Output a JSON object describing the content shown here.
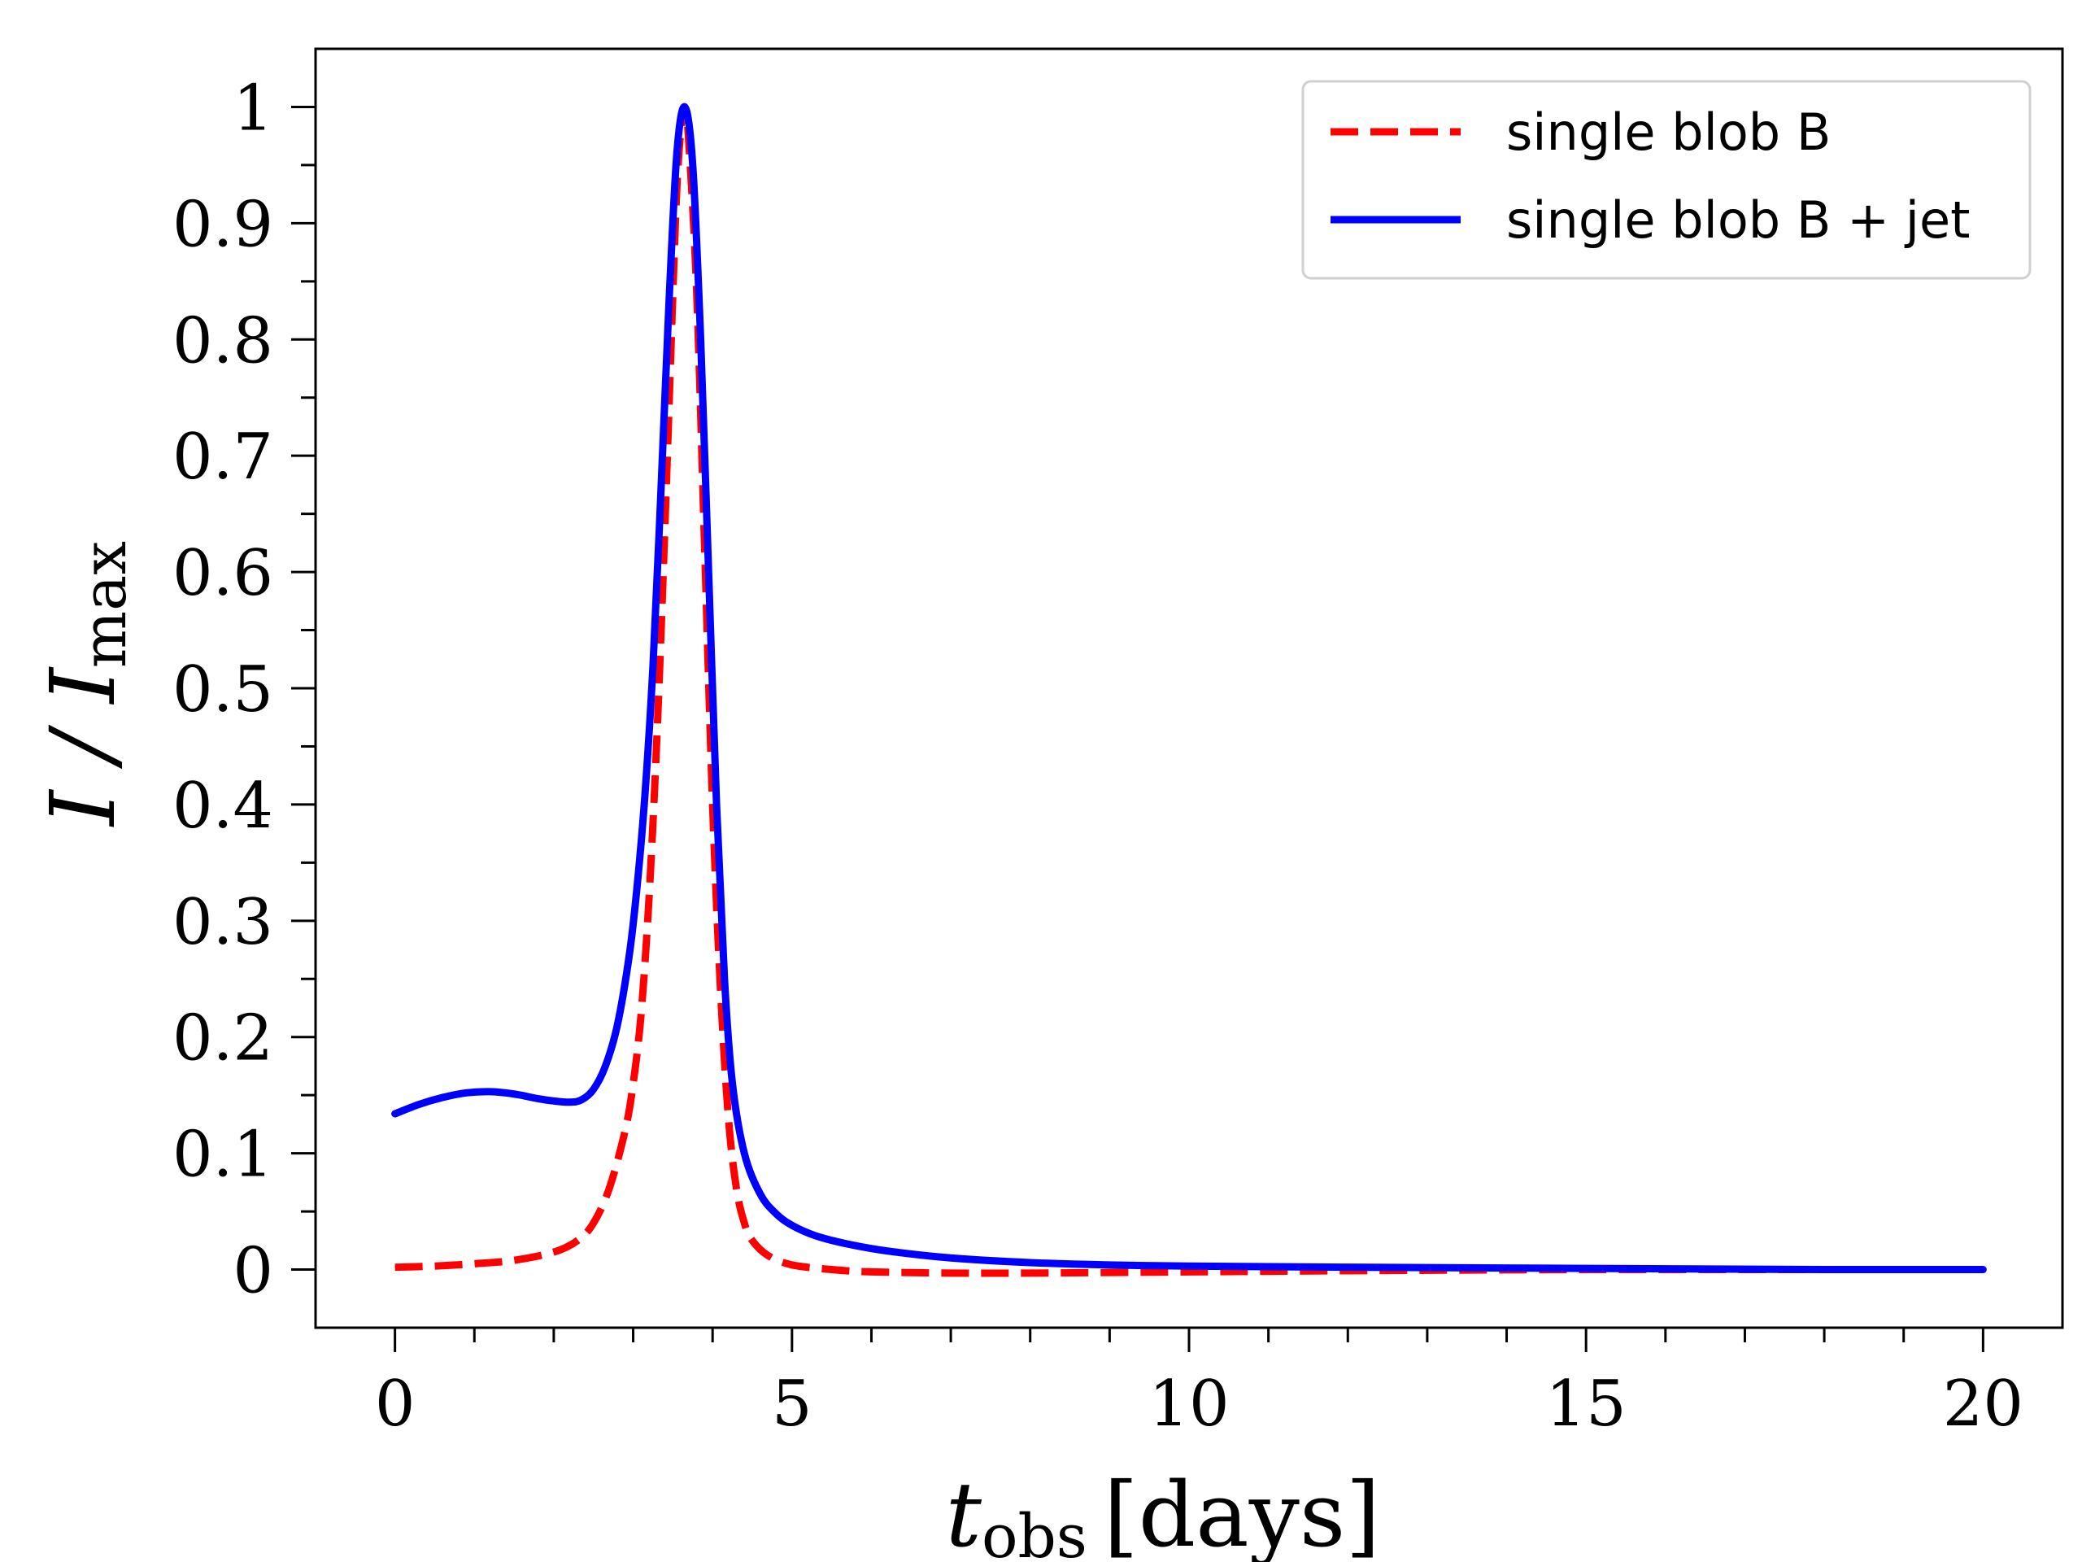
{
  "chart_data": {
    "type": "line",
    "title": "",
    "xlabel": {
      "main": "t",
      "sub": "obs",
      "unit": "[days]"
    },
    "ylabel": {
      "main": "I / I",
      "sub": "max"
    },
    "xlim": [
      -1,
      21
    ],
    "ylim": [
      -0.05,
      1.05
    ],
    "grid": false,
    "legend_position": "top-right",
    "x_major_ticks": [
      0,
      5,
      10,
      15,
      20
    ],
    "x_minor_ticks": [
      1,
      2,
      3,
      4,
      6,
      7,
      8,
      9,
      11,
      12,
      13,
      14,
      16,
      17,
      18,
      19
    ],
    "y_major_ticks": [
      0,
      0.1,
      0.2,
      0.3,
      0.4,
      0.5,
      0.6,
      0.7,
      0.8,
      0.9,
      1
    ],
    "y_minor_ticks": [
      0.05,
      0.15,
      0.25,
      0.35,
      0.45,
      0.55,
      0.65,
      0.75,
      0.85,
      0.95
    ],
    "x_tick_labels": [
      "0",
      "5",
      "10",
      "15",
      "20"
    ],
    "y_tick_labels": [
      "0",
      "0.1",
      "0.2",
      "0.3",
      "0.4",
      "0.5",
      "0.6",
      "0.7",
      "0.8",
      "0.9",
      "1"
    ],
    "series": [
      {
        "name": "single blob B",
        "color": "#ff0000",
        "style": "dashed",
        "x": [
          0,
          0.5,
          1.0,
          1.5,
          2.0,
          2.3,
          2.5,
          2.7,
          2.9,
          3.0,
          3.1,
          3.2,
          3.3,
          3.4,
          3.5,
          3.55,
          3.6,
          3.65,
          3.7,
          3.8,
          3.9,
          4.0,
          4.1,
          4.2,
          4.3,
          4.4,
          4.5,
          4.7,
          5.0,
          5.5,
          6,
          7,
          8,
          10,
          12,
          15,
          18,
          20
        ],
        "values": [
          0.002,
          0.003,
          0.005,
          0.008,
          0.015,
          0.025,
          0.04,
          0.07,
          0.12,
          0.16,
          0.22,
          0.32,
          0.46,
          0.64,
          0.84,
          0.93,
          0.98,
          1.0,
          0.97,
          0.84,
          0.62,
          0.4,
          0.24,
          0.13,
          0.07,
          0.04,
          0.025,
          0.012,
          0.004,
          0.0,
          -0.002,
          -0.003,
          -0.003,
          -0.002,
          -0.001,
          0.0,
          0.0,
          0.0
        ]
      },
      {
        "name": "single blob B + jet",
        "color": "#0000ff",
        "style": "solid",
        "x": [
          0,
          0.3,
          0.6,
          0.9,
          1.2,
          1.5,
          1.8,
          2.0,
          2.2,
          2.35,
          2.5,
          2.65,
          2.8,
          2.95,
          3.05,
          3.15,
          3.25,
          3.35,
          3.45,
          3.55,
          3.65,
          3.75,
          3.85,
          3.95,
          4.05,
          4.15,
          4.25,
          4.4,
          4.6,
          4.8,
          5.0,
          5.3,
          5.7,
          6.2,
          7,
          8,
          9,
          10,
          12,
          15,
          18,
          20
        ],
        "values": [
          0.134,
          0.142,
          0.148,
          0.152,
          0.153,
          0.151,
          0.147,
          0.145,
          0.144,
          0.146,
          0.155,
          0.175,
          0.21,
          0.27,
          0.33,
          0.41,
          0.52,
          0.67,
          0.83,
          0.96,
          1.0,
          0.95,
          0.8,
          0.6,
          0.4,
          0.25,
          0.16,
          0.1,
          0.065,
          0.048,
          0.038,
          0.029,
          0.022,
          0.016,
          0.01,
          0.006,
          0.004,
          0.003,
          0.002,
          0.001,
          0.0,
          0.0
        ]
      }
    ]
  }
}
